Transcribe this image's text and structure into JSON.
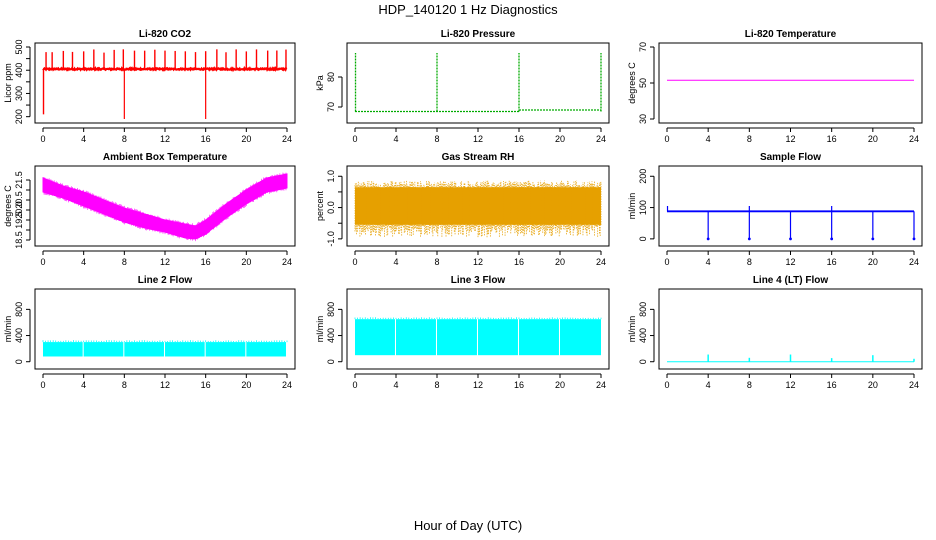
{
  "title": "HDP_140120  1 Hz Diagnostics",
  "xlabel": "Hour of Day (UTC)",
  "chart_data": [
    {
      "type": "line",
      "title": "Li-820 CO2",
      "ylabel": "Licor ppm",
      "ylim": [
        190,
        500
      ],
      "yticks": [
        200,
        250,
        300,
        350,
        400,
        450,
        500
      ],
      "ytick_labels": [
        "200",
        "",
        "300",
        "",
        "400",
        "",
        "500"
      ],
      "xlim": [
        0,
        24
      ],
      "xticks": [
        0,
        4,
        8,
        12,
        16,
        20,
        24
      ],
      "color": "#ff0000",
      "series": [
        {
          "base": 405,
          "noise": 6,
          "spikes_up": [
            0.3,
            0.9,
            2.0,
            2.9,
            4.0,
            5.0,
            6.0,
            7.0,
            7.9,
            9.0,
            10.0,
            11.0,
            12.0,
            13.0,
            14.0,
            15.0,
            16.0,
            17.1,
            18.0,
            19.0,
            20.0,
            21.0,
            22.1,
            23.0,
            23.9
          ],
          "spike_up_to": 490,
          "spikes_down": [
            8.0,
            16.0
          ],
          "spike_down_to": 190
        }
      ]
    },
    {
      "type": "line",
      "title": "Li-820 Pressure",
      "ylabel": "kPa",
      "ylim": [
        66,
        90
      ],
      "yticks": [
        70,
        80
      ],
      "ytick_labels": [
        "70",
        "80"
      ],
      "xlim": [
        0,
        24
      ],
      "xticks": [
        0,
        4,
        8,
        12,
        16,
        20,
        24
      ],
      "color": "#00aa00",
      "series": [
        {
          "base": 68.5,
          "segments": [
            [
              0,
              16,
              68.5
            ],
            [
              16,
              24,
              69.0
            ]
          ],
          "spikes_up": [
            0.05,
            8.0,
            16.0,
            24.0
          ],
          "spike_up_to": 88
        }
      ]
    },
    {
      "type": "line",
      "title": "Li-820 Temperature",
      "ylabel": "degrees C",
      "ylim": [
        30,
        70
      ],
      "yticks": [
        30,
        50,
        70
      ],
      "ytick_labels": [
        "30",
        "50",
        "70"
      ],
      "xlim": [
        0,
        24
      ],
      "xticks": [
        0,
        4,
        8,
        12,
        16,
        20,
        24
      ],
      "color": "#ff00ff",
      "series": [
        {
          "base": 51.5
        }
      ]
    },
    {
      "type": "area",
      "title": "Ambient Box Temperature",
      "ylabel": "degrees C",
      "ylim": [
        18.4,
        22.0
      ],
      "yticks": [
        18.5,
        19.0,
        19.5,
        20.0,
        20.5,
        21.0,
        21.5
      ],
      "ytick_labels": [
        "18.5",
        "",
        "19.5",
        "20.0",
        "20.5",
        "",
        "21.5"
      ],
      "xlim": [
        0,
        24
      ],
      "xticks": [
        0,
        4,
        8,
        12,
        16,
        20,
        24
      ],
      "color": "#ff00ff",
      "series": [
        {
          "x": [
            0,
            2,
            4,
            6,
            8,
            10,
            12,
            14,
            15,
            16,
            18,
            20,
            22,
            24
          ],
          "low": [
            20.9,
            20.6,
            20.2,
            19.8,
            19.4,
            19.1,
            18.9,
            18.6,
            18.55,
            18.8,
            19.6,
            20.3,
            20.9,
            21.1
          ],
          "high": [
            21.6,
            21.2,
            20.9,
            20.5,
            20.1,
            19.8,
            19.5,
            19.3,
            19.2,
            19.5,
            20.3,
            21.0,
            21.6,
            21.8
          ]
        }
      ]
    },
    {
      "type": "area",
      "title": "Gas Stream RH",
      "ylabel": "percent",
      "ylim": [
        -1.1,
        1.2
      ],
      "yticks": [
        -1.0,
        -0.5,
        0.0,
        0.5,
        1.0
      ],
      "ytick_labels": [
        "-1.0",
        "",
        "0.0",
        "",
        "1.0"
      ],
      "xlim": [
        0,
        24
      ],
      "xticks": [
        0,
        4,
        8,
        12,
        16,
        20,
        24
      ],
      "color": "#e6a000",
      "series": [
        {
          "low": -0.55,
          "high": 0.65,
          "extreme_low": -0.95,
          "extreme_high": 1.0
        }
      ]
    },
    {
      "type": "line",
      "title": "Sample Flow",
      "ylabel": "ml/min",
      "ylim": [
        -10,
        220
      ],
      "yticks": [
        0,
        100,
        200
      ],
      "ytick_labels": [
        "0",
        "100",
        "200"
      ],
      "xlim": [
        0,
        24
      ],
      "xticks": [
        0,
        4,
        8,
        12,
        16,
        20,
        24
      ],
      "color": "#0000ff",
      "series": [
        {
          "base": 88,
          "band": 6,
          "dips": [
            4,
            8,
            12,
            16,
            20,
            24
          ],
          "dip_to": 0,
          "peaks": [
            0.05,
            8,
            16
          ],
          "peak_to": 105
        }
      ]
    },
    {
      "type": "area",
      "title": "Line 2 Flow",
      "ylabel": "ml/min",
      "ylim": [
        -50,
        1050
      ],
      "yticks": [
        0,
        400,
        800
      ],
      "ytick_labels": [
        "0",
        "400",
        "800"
      ],
      "xlim": [
        0,
        24
      ],
      "xticks": [
        0,
        4,
        8,
        12,
        16,
        20,
        24
      ],
      "color": "#00ffff",
      "series": [
        {
          "low": 80,
          "high": 300,
          "segment_starts": [
            0,
            4,
            8,
            12,
            16,
            20
          ],
          "segment_ends": [
            3.9,
            7.9,
            11.9,
            15.9,
            19.9,
            23.9
          ]
        }
      ]
    },
    {
      "type": "area",
      "title": "Line 3 Flow",
      "ylabel": "ml/min",
      "ylim": [
        -50,
        1050
      ],
      "yticks": [
        0,
        400,
        800
      ],
      "ytick_labels": [
        "0",
        "400",
        "800"
      ],
      "xlim": [
        0,
        24
      ],
      "xticks": [
        0,
        4,
        8,
        12,
        16,
        20,
        24
      ],
      "color": "#00ffff",
      "series": [
        {
          "low": 100,
          "high": 650,
          "segment_starts": [
            0,
            4,
            8,
            12,
            16,
            20
          ],
          "segment_ends": [
            3.9,
            7.9,
            11.9,
            15.9,
            19.9,
            24.0
          ]
        }
      ]
    },
    {
      "type": "line",
      "title": "Line 4 (LT) Flow",
      "ylabel": "ml/min",
      "ylim": [
        -50,
        1050
      ],
      "yticks": [
        0,
        400,
        800
      ],
      "ytick_labels": [
        "0",
        "400",
        "800"
      ],
      "xlim": [
        0,
        24
      ],
      "xticks": [
        0,
        4,
        8,
        12,
        16,
        20,
        24
      ],
      "color": "#00ffff",
      "series": [
        {
          "base": 0,
          "peaks": [
            4,
            8,
            12,
            16,
            20,
            24
          ],
          "peak_values": [
            110,
            60,
            110,
            55,
            100,
            45
          ]
        }
      ]
    }
  ]
}
